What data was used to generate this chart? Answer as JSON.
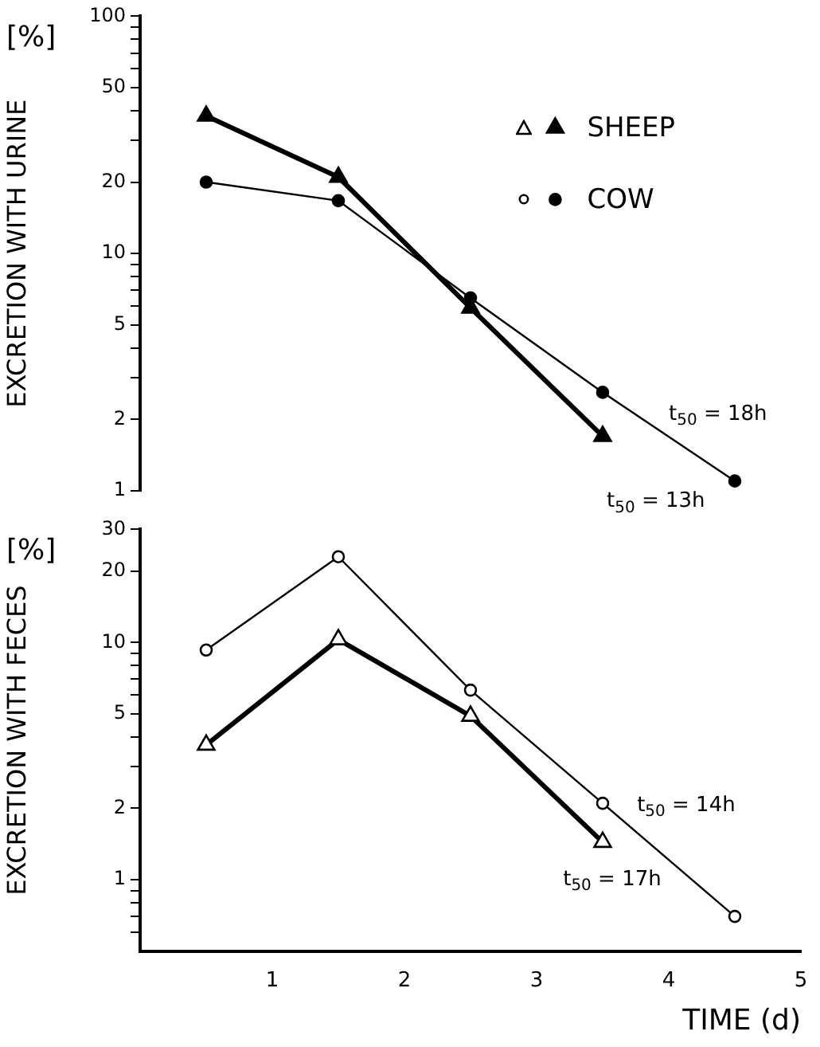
{
  "chart_data": [
    {
      "type": "line",
      "ylabel": "EXCRETION WITH URINE",
      "log": "y",
      "grid": false,
      "legend": "top right",
      "tick_labels": "y",
      "x": [
        0.5,
        1.5,
        2.5,
        3.5,
        4.5
      ],
      "xlim": [
        0,
        5
      ],
      "ylim": [
        1,
        100
      ],
      "yticks": [
        1,
        2,
        {
          "value": 3,
          "label": null
        },
        {
          "value": 4,
          "label": null
        },
        5,
        {
          "value": 6,
          "label": null
        },
        {
          "value": 7,
          "label": null
        },
        {
          "value": 8,
          "label": null
        },
        {
          "value": 9,
          "label": null
        },
        10,
        20,
        {
          "value": 30,
          "label": null
        },
        {
          "value": 40,
          "label": null
        },
        50,
        {
          "value": 60,
          "label": null
        },
        {
          "value": 70,
          "label": null
        },
        {
          "value": 80,
          "label": null
        },
        {
          "value": 90,
          "label": null
        },
        100
      ],
      "series": [
        {
          "name": "SHEEP",
          "color": "#000000",
          "marker": "triangle",
          "values": [
            38,
            21,
            5.9,
            1.7,
            null
          ]
        },
        {
          "name": "COW",
          "color": "#000000",
          "marker": "circle",
          "values": [
            20,
            16.7,
            6.5,
            2.6,
            1.1
          ]
        }
      ],
      "annotations": [
        "[%]",
        "t$_{50}$ = 18h",
        "t$_{50}$ = 13h"
      ]
    },
    {
      "type": "line",
      "ylabel": "EXCRETION WITH FECES",
      "xlabel": "TIME (d)",
      "log": "y",
      "grid": false,
      "x": [
        0.5,
        1.5,
        2.5,
        3.5,
        4.5
      ],
      "xlim": [
        0,
        5
      ],
      "xticks": [
        {
          "value": 0,
          "label": null
        },
        1,
        2,
        3,
        4,
        5
      ],
      "ylim": [
        0.5,
        30
      ],
      "yticks": [
        {
          "value": 0.6,
          "label": null
        },
        {
          "value": 0.7,
          "label": null
        },
        {
          "value": 0.8,
          "label": null
        },
        {
          "value": 0.9,
          "label": null
        },
        1,
        2,
        {
          "value": 3,
          "label": null
        },
        {
          "value": 4,
          "label": null
        },
        5,
        {
          "value": 6,
          "label": null
        },
        {
          "value": 7,
          "label": null
        },
        {
          "value": 8,
          "label": null
        },
        {
          "value": 9,
          "label": null
        },
        10,
        20,
        30
      ],
      "series": [
        {
          "color": "#000000",
          "marker": "triangle",
          "values": [
            3.7,
            10.3,
            4.9,
            1.44,
            null
          ]
        },
        {
          "color": "#000000",
          "marker": "circle",
          "values": [
            9.3,
            23,
            6.3,
            2.1,
            0.7
          ]
        }
      ],
      "annotations": [
        "[%]",
        "t$_{50}$ = 14h",
        "t$_{50}$ = 17h"
      ]
    }
  ]
}
